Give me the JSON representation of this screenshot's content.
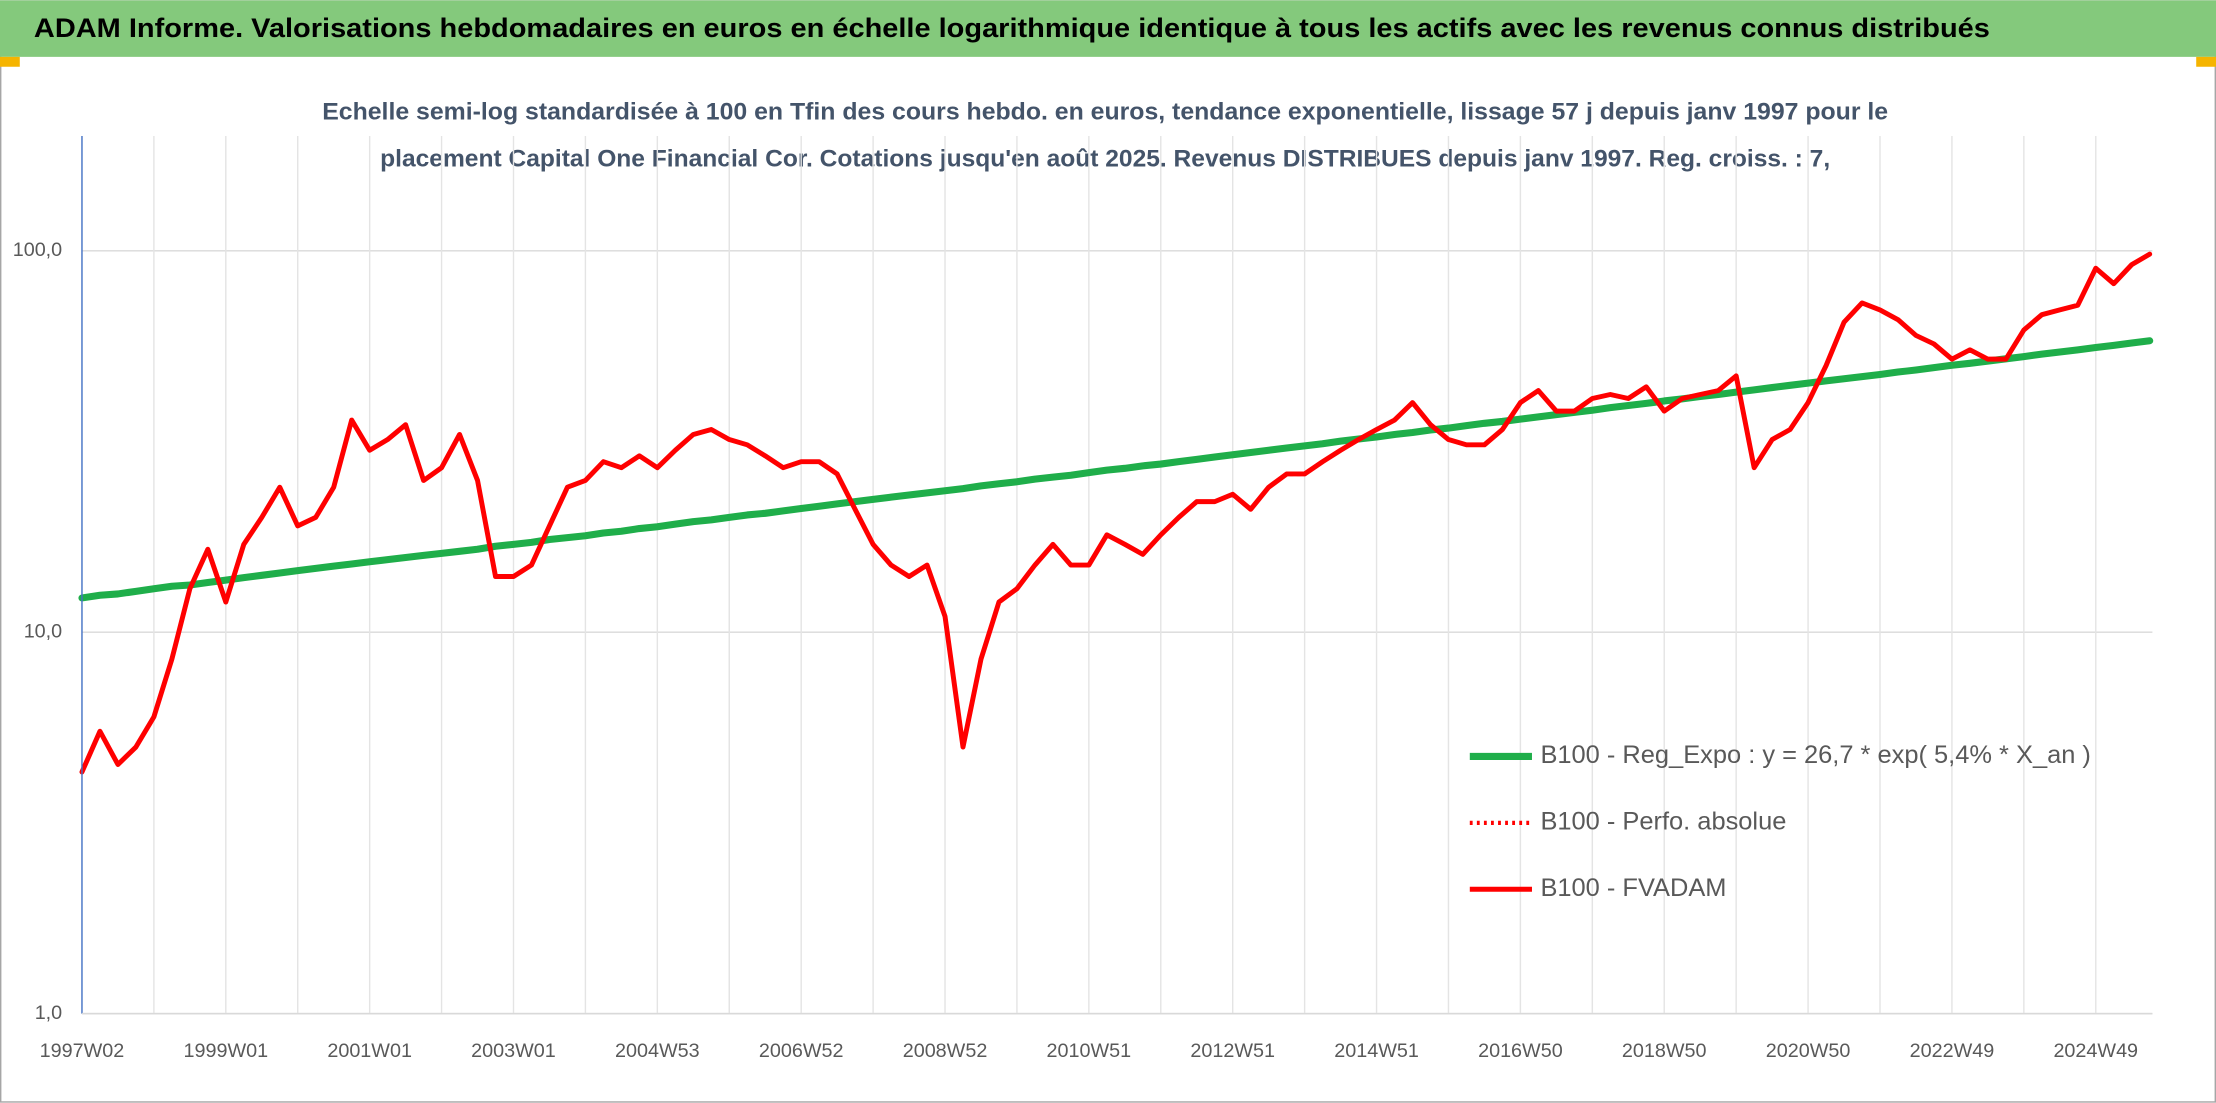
{
  "chart_data": {
    "type": "line",
    "title": "ADAM Informe. Valorisations hebdomadaires en euros en échelle logarithmique identique à tous les actifs avec les revenus connus distribués",
    "subtitle_lines": [
      "Echelle semi-log standardisée à 100 en Tfin des cours hebdo. en euros, tendance exponentielle, lissage 57 j depuis janv 1997 pour le",
      "placement Capital One Financial Cor. Cotations jusqu'en août 2025. Revenus DISTRIBUES depuis janv 1997. Reg. croiss. : 7,"
    ],
    "log_scale": true,
    "grid": true,
    "legend_position": "right",
    "ylim": [
      1,
      200
    ],
    "yticks": [
      {
        "value": 1,
        "label": "1,0"
      },
      {
        "value": 10,
        "label": "10,0"
      },
      {
        "value": 100,
        "label": "100,0"
      }
    ],
    "categories": [
      "1997W02",
      null,
      null,
      null,
      null,
      null,
      null,
      null,
      "1999W01",
      null,
      null,
      null,
      null,
      null,
      null,
      null,
      "2001W01",
      null,
      null,
      null,
      null,
      null,
      null,
      null,
      "2003W01",
      null,
      null,
      null,
      null,
      null,
      null,
      null,
      "2004W53",
      null,
      null,
      null,
      null,
      null,
      null,
      null,
      "2006W52",
      null,
      null,
      null,
      null,
      null,
      null,
      null,
      "2008W52",
      null,
      null,
      null,
      null,
      null,
      null,
      null,
      "2010W51",
      null,
      null,
      null,
      null,
      null,
      null,
      null,
      "2012W51",
      null,
      null,
      null,
      null,
      null,
      null,
      null,
      "2014W51",
      null,
      null,
      null,
      null,
      null,
      null,
      null,
      "2016W50",
      null,
      null,
      null,
      null,
      null,
      null,
      null,
      "2018W50",
      null,
      null,
      null,
      null,
      null,
      null,
      null,
      "2020W50",
      null,
      null,
      null,
      null,
      null,
      null,
      null,
      "2022W49",
      null,
      null,
      null,
      null,
      null,
      null,
      null,
      "2024W49",
      null,
      null,
      null
    ],
    "series": [
      {
        "name": "B100 - Reg_Expo : y = 26,7 * exp( 5,4% *  X_an )",
        "color": "#1fae4a",
        "style": "solid",
        "values": [
          12.3,
          12.5,
          12.6,
          12.8,
          13.0,
          13.2,
          13.3,
          13.5,
          13.7,
          13.9,
          14.1,
          14.3,
          14.5,
          14.7,
          14.9,
          15.1,
          15.3,
          15.5,
          15.7,
          15.9,
          16.1,
          16.3,
          16.5,
          16.8,
          17.0,
          17.2,
          17.5,
          17.7,
          17.9,
          18.2,
          18.4,
          18.7,
          18.9,
          19.2,
          19.5,
          19.7,
          20.0,
          20.3,
          20.5,
          20.8,
          21.1,
          21.4,
          21.7,
          22.0,
          22.3,
          22.6,
          22.9,
          23.2,
          23.5,
          23.8,
          24.2,
          24.5,
          24.8,
          25.2,
          25.5,
          25.8,
          26.2,
          26.6,
          26.9,
          27.3,
          27.6,
          28.0,
          28.4,
          28.8,
          29.2,
          29.6,
          30.0,
          30.4,
          30.8,
          31.2,
          31.7,
          32.1,
          32.5,
          33.0,
          33.4,
          33.9,
          34.3,
          34.8,
          35.3,
          35.7,
          36.2,
          36.7,
          37.2,
          37.7,
          38.2,
          38.8,
          39.3,
          39.8,
          40.4,
          40.9,
          41.5,
          42.0,
          42.6,
          43.2,
          43.8,
          44.4,
          45.0,
          45.6,
          46.2,
          46.8,
          47.4,
          48.1,
          48.7,
          49.4,
          50.1,
          50.7,
          51.4,
          52.1,
          52.8,
          53.6,
          54.3,
          55.0,
          55.8,
          56.5,
          57.3,
          58.1
        ]
      },
      {
        "name": "B100 - Perfo. absolue",
        "color": "#ff0000",
        "style": "dotted",
        "values": [
          4.3,
          5.5,
          4.5,
          5.0,
          6.0,
          8.5,
          13,
          16.5,
          12,
          17,
          20,
          24,
          19,
          20,
          24,
          36,
          30,
          32,
          35,
          25,
          27,
          33,
          25,
          14,
          14,
          15,
          19,
          24,
          25,
          28,
          27,
          29,
          27,
          30,
          33,
          34,
          32,
          31,
          29,
          27,
          28,
          28,
          26,
          21,
          17,
          15,
          14,
          15,
          11,
          5.0,
          8.5,
          12,
          13,
          15,
          17,
          15,
          15,
          18,
          17,
          16,
          18,
          20,
          22,
          22,
          23,
          21,
          24,
          26,
          26,
          28,
          30,
          32,
          34,
          36,
          40,
          35,
          32,
          31,
          31,
          34,
          40,
          43,
          38,
          38,
          41,
          42,
          41,
          44,
          38,
          41,
          42,
          43,
          47,
          27,
          32,
          34,
          40,
          50,
          65,
          73,
          70,
          66,
          60,
          57,
          52,
          55,
          52,
          52,
          62,
          68,
          70,
          72,
          90,
          82,
          92,
          98
        ]
      },
      {
        "name": "B100 - FVADAM",
        "color": "#ff0000",
        "style": "solid",
        "values": [
          4.3,
          5.5,
          4.5,
          5.0,
          6.0,
          8.5,
          13,
          16.5,
          12,
          17,
          20,
          24,
          19,
          20,
          24,
          36,
          30,
          32,
          35,
          25,
          27,
          33,
          25,
          14,
          14,
          15,
          19,
          24,
          25,
          28,
          27,
          29,
          27,
          30,
          33,
          34,
          32,
          31,
          29,
          27,
          28,
          28,
          26,
          21,
          17,
          15,
          14,
          15,
          11,
          5.0,
          8.5,
          12,
          13,
          15,
          17,
          15,
          15,
          18,
          17,
          16,
          18,
          20,
          22,
          22,
          23,
          21,
          24,
          26,
          26,
          28,
          30,
          32,
          34,
          36,
          40,
          35,
          32,
          31,
          31,
          34,
          40,
          43,
          38,
          38,
          41,
          42,
          41,
          44,
          38,
          41,
          42,
          43,
          47,
          27,
          32,
          34,
          40,
          50,
          65,
          73,
          70,
          66,
          60,
          57,
          52,
          55,
          52,
          52,
          62,
          68,
          70,
          72,
          90,
          82,
          92,
          98
        ]
      }
    ]
  }
}
